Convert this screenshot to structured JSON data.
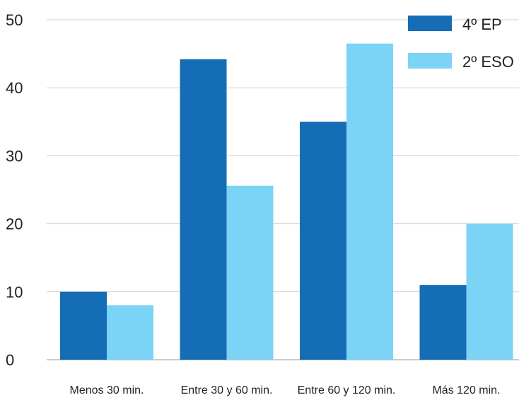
{
  "chart_data": {
    "type": "bar",
    "title": "",
    "xlabel": "",
    "ylabel": "",
    "categories": [
      "Menos 30 min.",
      "Entre 30 y 60 min.",
      "Entre 60 y 120 min.",
      "Más 120 min."
    ],
    "series": [
      {
        "name": "4º EP",
        "color": "#156db5",
        "values": [
          10,
          44.2,
          35,
          11
        ]
      },
      {
        "name": "2º ESO",
        "color": "#7bd3f5",
        "values": [
          8,
          25.6,
          46.5,
          20
        ]
      }
    ],
    "ylim": [
      0,
      50
    ],
    "yticks": [
      0,
      10,
      20,
      30,
      40,
      50
    ],
    "grid": true,
    "legend_position": "top-right"
  }
}
